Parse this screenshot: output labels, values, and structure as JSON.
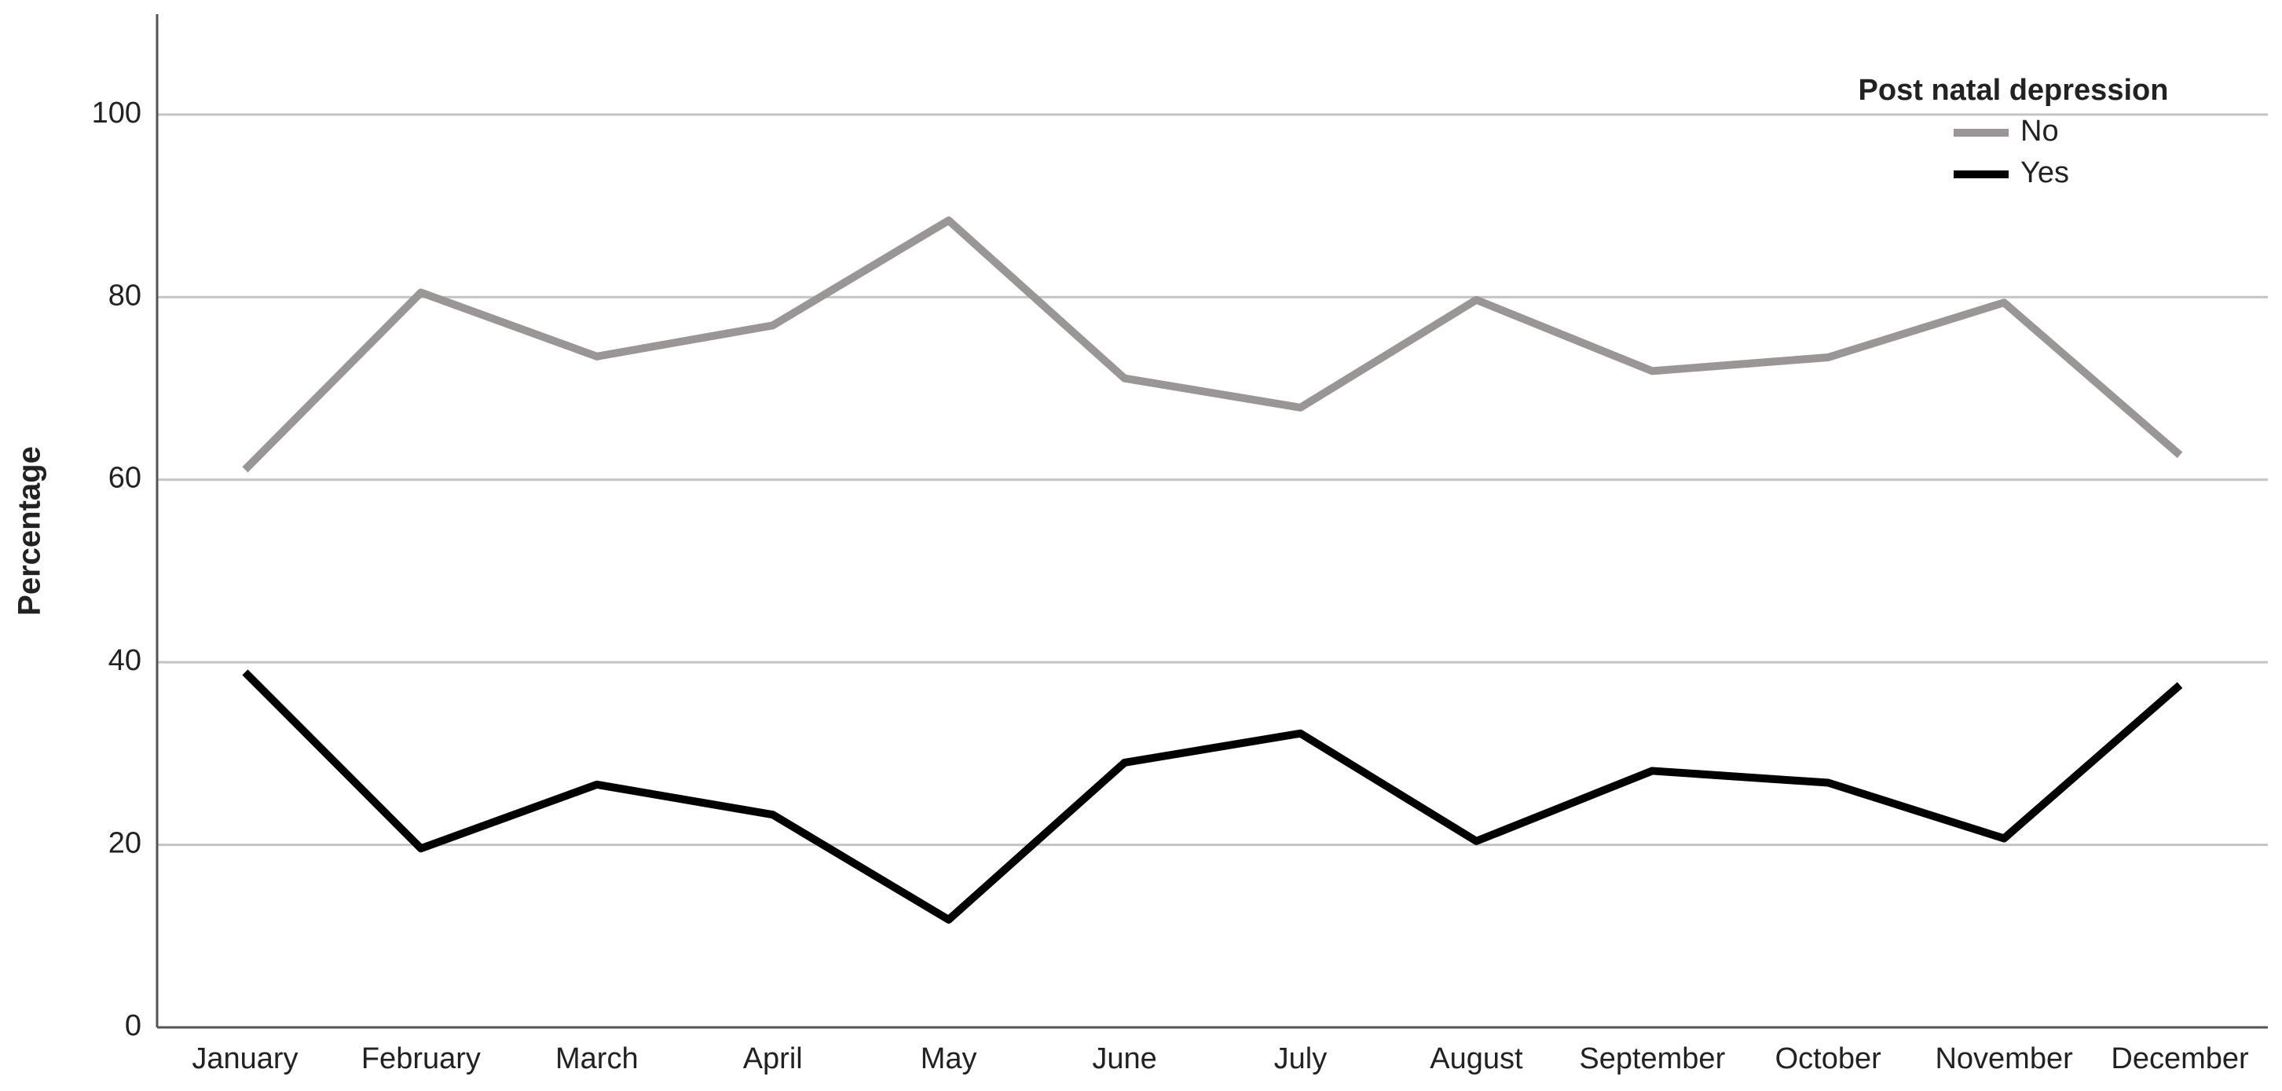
{
  "chart_data": {
    "type": "line",
    "y_label": "Percentage",
    "legend_title": "Post natal depression",
    "legend_position": "upper-right",
    "categories": [
      "January",
      "February",
      "March",
      "April",
      "May",
      "June",
      "July",
      "August",
      "September",
      "October",
      "November",
      "December"
    ],
    "series": [
      {
        "name": "No",
        "color": "#9a9696",
        "values": [
          61.1,
          80.5,
          73.5,
          76.9,
          88.4,
          71.1,
          67.9,
          79.7,
          71.9,
          73.4,
          79.4,
          62.7
        ]
      },
      {
        "name": "Yes",
        "color": "#000000",
        "values": [
          38.9,
          19.6,
          26.6,
          23.3,
          11.8,
          29.0,
          32.2,
          20.4,
          28.1,
          26.8,
          20.7,
          37.5
        ]
      }
    ],
    "ylim": [
      0,
      111
    ],
    "yticks": [
      0,
      20,
      40,
      60,
      80,
      100
    ],
    "grid": true
  }
}
